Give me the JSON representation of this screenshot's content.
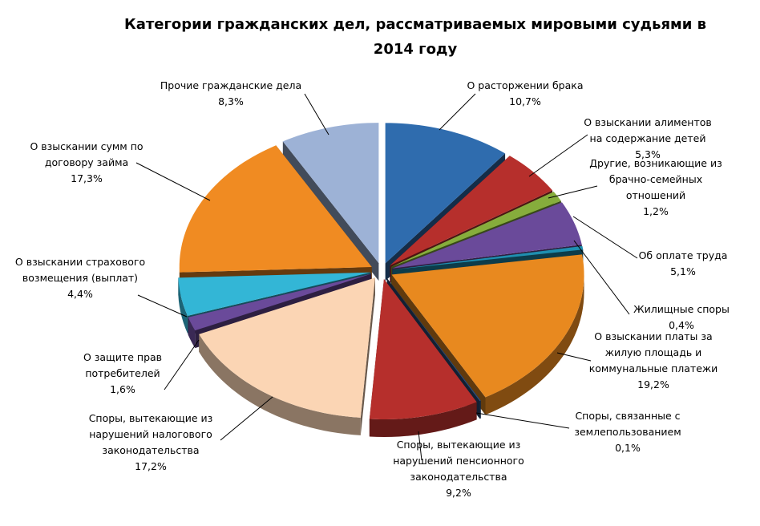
{
  "chart_data": {
    "type": "pie",
    "title_lines": [
      "Категории гражданских дел, рассматриваемых мировыми судьями в",
      "2014 году"
    ],
    "unit": "%",
    "slices": [
      {
        "label_lines": [
          "О расторжении брака",
          "10,7%"
        ],
        "value": 10.7,
        "color": "#2f6cae"
      },
      {
        "label_lines": [
          "О взыскании алиментов",
          "на содержание детей",
          "5,3%"
        ],
        "value": 5.3,
        "color": "#b62f2c"
      },
      {
        "label_lines": [
          "Другие, возникающие из",
          "брачно-семейных",
          "отношений",
          "1,2%"
        ],
        "value": 1.2,
        "color": "#86ad3c"
      },
      {
        "label_lines": [
          "Об оплате труда",
          "5,1%"
        ],
        "value": 5.1,
        "color": "#6a4a9a"
      },
      {
        "label_lines": [
          "Жилищные споры",
          "0,4%"
        ],
        "value": 0.4,
        "color": "#1f8fb0"
      },
      {
        "label_lines": [
          "О взыскании платы за",
          "жилую площадь и",
          "коммунальные платежи",
          "19,2%"
        ],
        "value": 19.2,
        "color": "#e8891f"
      },
      {
        "label_lines": [
          "Споры, связанные с",
          "землепользованием",
          "0,1%"
        ],
        "value": 0.1,
        "color": "#2c4d7a"
      },
      {
        "label_lines": [
          "Споры, вытекающие из",
          "нарушений пенсионного",
          "законодательства",
          "9,2%"
        ],
        "value": 9.2,
        "color": "#b62f2c"
      },
      {
        "label_lines": [
          "Споры, вытекающие из",
          "нарушений налогового",
          "законодательства",
          "17,2%"
        ],
        "value": 17.2,
        "color": "#fbd5b4"
      },
      {
        "label_lines": [
          "О защите прав",
          "потребителей",
          "1,6%"
        ],
        "value": 1.6,
        "color": "#6a4a9a"
      },
      {
        "label_lines": [
          "О взыскании страхового",
          "возмещения (выплат)",
          "4,4%"
        ],
        "value": 4.4,
        "color": "#33b6d6"
      },
      {
        "label_lines": [
          "О взыскании сумм по",
          "договору займа",
          "17,3%"
        ],
        "value": 17.3,
        "color": "#f08b22"
      },
      {
        "label_lines": [
          "Прочие гражданские дела",
          "8,3%"
        ],
        "value": 8.3,
        "color": "#9db2d6"
      }
    ]
  }
}
